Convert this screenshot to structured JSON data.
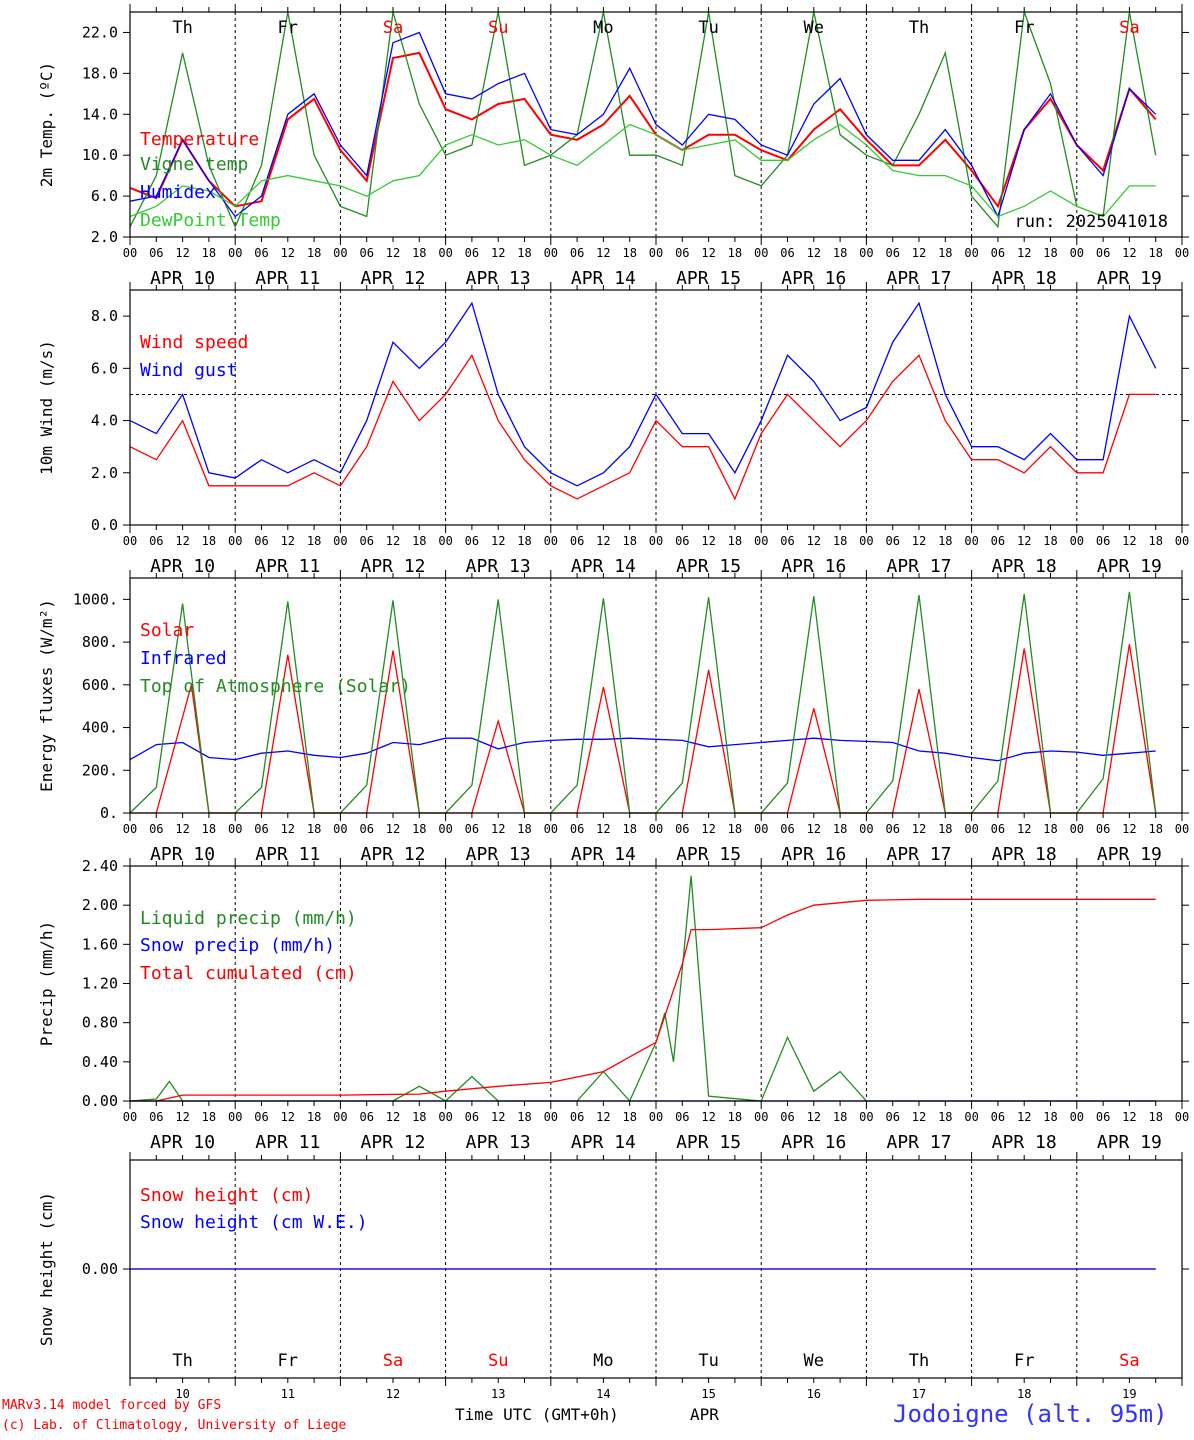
{
  "days": [
    {
      "label": "Th",
      "color": "#000000",
      "date": "APR 10",
      "num": "10"
    },
    {
      "label": "Fr",
      "color": "#000000",
      "date": "APR 11",
      "num": "11"
    },
    {
      "label": "Sa",
      "color": "#ff0000",
      "date": "APR 12",
      "num": "12"
    },
    {
      "label": "Su",
      "color": "#ff0000",
      "date": "APR 13",
      "num": "13"
    },
    {
      "label": "Mo",
      "color": "#000000",
      "date": "APR 14",
      "num": "14"
    },
    {
      "label": "Tu",
      "color": "#000000",
      "date": "APR 15",
      "num": "15"
    },
    {
      "label": "We",
      "color": "#000000",
      "date": "APR 16",
      "num": "16"
    },
    {
      "label": "Th",
      "color": "#000000",
      "date": "APR 17",
      "num": "17"
    },
    {
      "label": "Fr",
      "color": "#000000",
      "date": "APR 18",
      "num": "18"
    },
    {
      "label": "Sa",
      "color": "#ff0000",
      "date": "APR 19",
      "num": "19"
    }
  ],
  "hour_ticks": [
    "00",
    "06",
    "12",
    "18"
  ],
  "footer": {
    "model": "MARv3.14 model forced by GFS",
    "lab": "(c) Lab. of Climatology, University of Liege",
    "xlabel": "Time UTC (GMT+0h)",
    "month": "APR",
    "station": "Jodoigne (alt. 95m)"
  },
  "run_label": "run: 2025041018",
  "chart_data": [
    {
      "type": "line",
      "ylabel": "2m Temp. (ºC)",
      "ylim": [
        2,
        24
      ],
      "yticks": [
        "2.0",
        "6.0",
        "10.0",
        "14.0",
        "18.0",
        "22.0"
      ],
      "x_unit": "hours since APR 10 00 UTC",
      "series": [
        {
          "name": "Temperature",
          "color": "#ff0000",
          "x": [
            0,
            6,
            12,
            18,
            24,
            30,
            36,
            42,
            48,
            54,
            60,
            66,
            72,
            78,
            84,
            90,
            96,
            102,
            108,
            114,
            120,
            126,
            132,
            138,
            144,
            150,
            156,
            162,
            168,
            174,
            180,
            186,
            192,
            198,
            204,
            210,
            216,
            222,
            228,
            234
          ],
          "y": [
            6.8,
            5.8,
            11.5,
            7.5,
            5,
            5.5,
            13.5,
            15.5,
            10.5,
            7.5,
            19.5,
            20,
            14.5,
            13.5,
            15,
            15.5,
            12,
            11.5,
            13,
            15.8,
            12,
            10.5,
            12,
            12,
            10.5,
            9.5,
            12.5,
            14.5,
            11.5,
            9,
            9,
            11.5,
            8.5,
            5,
            12.5,
            15.5,
            11,
            8.5,
            16.5,
            13.5
          ]
        },
        {
          "name": "Vigne temp",
          "color": "#228b22",
          "x": [
            0,
            6,
            12,
            18,
            24,
            30,
            36,
            42,
            48,
            54,
            60,
            66,
            72,
            78,
            84,
            90,
            96,
            102,
            108,
            114,
            120,
            126,
            132,
            138,
            144,
            150,
            156,
            162,
            168,
            174,
            180,
            186,
            192,
            198,
            204,
            210,
            216,
            222,
            228,
            234
          ],
          "y": [
            3,
            8,
            20,
            9,
            3,
            9,
            24,
            10,
            5,
            4,
            24,
            15,
            10,
            11,
            24,
            9,
            10,
            12,
            24,
            10,
            10,
            9,
            24,
            8,
            7,
            10,
            24,
            12,
            10,
            9,
            14,
            20,
            6,
            3,
            24,
            17,
            5,
            4,
            24,
            10
          ]
        },
        {
          "name": "Humidex",
          "color": "#0000ff",
          "x": [
            0,
            6,
            12,
            18,
            24,
            30,
            36,
            42,
            48,
            54,
            60,
            66,
            72,
            78,
            84,
            90,
            96,
            102,
            108,
            114,
            120,
            126,
            132,
            138,
            144,
            150,
            156,
            162,
            168,
            174,
            180,
            186,
            192,
            198,
            204,
            210,
            216,
            222,
            228,
            234
          ],
          "y": [
            5.5,
            6,
            11.5,
            7.5,
            4,
            6,
            14,
            16,
            11,
            8,
            21,
            22,
            16,
            15.5,
            17,
            18,
            12.5,
            12,
            14,
            18.5,
            13,
            11,
            14,
            13.5,
            11,
            10,
            15,
            17.5,
            12,
            9.5,
            9.5,
            12.5,
            9,
            4,
            12.5,
            16,
            11,
            8,
            16.5,
            14
          ]
        },
        {
          "name": "DewPoint Temp",
          "color": "#33cc33",
          "x": [
            0,
            6,
            12,
            18,
            24,
            30,
            36,
            42,
            48,
            54,
            60,
            66,
            72,
            78,
            84,
            90,
            96,
            102,
            108,
            114,
            120,
            126,
            132,
            138,
            144,
            150,
            156,
            162,
            168,
            174,
            180,
            186,
            192,
            198,
            204,
            210,
            216,
            222,
            228,
            234
          ],
          "y": [
            4,
            5,
            7,
            6.5,
            5,
            7.5,
            8,
            7.5,
            7,
            6,
            7.5,
            8,
            11,
            12,
            11,
            11.5,
            10,
            9,
            11,
            13,
            12,
            10.5,
            11,
            11.5,
            9.5,
            9.5,
            11.5,
            13,
            11,
            8.5,
            8,
            8,
            7,
            4,
            5,
            6.5,
            5,
            4,
            7,
            7
          ]
        }
      ]
    },
    {
      "type": "line",
      "ylabel": "10m Wind (m/s)",
      "ylim": [
        0,
        9
      ],
      "yticks": [
        "0.0",
        "2.0",
        "4.0",
        "6.0",
        "8.0"
      ],
      "reference_line": 5,
      "series": [
        {
          "name": "Wind speed",
          "color": "#ff0000",
          "x": [
            0,
            6,
            12,
            18,
            24,
            30,
            36,
            42,
            48,
            54,
            60,
            66,
            72,
            78,
            84,
            90,
            96,
            102,
            108,
            114,
            120,
            126,
            132,
            138,
            144,
            150,
            156,
            162,
            168,
            174,
            180,
            186,
            192,
            198,
            204,
            210,
            216,
            222,
            228,
            234
          ],
          "y": [
            3,
            2.5,
            4,
            1.5,
            1.5,
            1.5,
            1.5,
            2,
            1.5,
            3,
            5.5,
            4,
            5,
            6.5,
            4,
            2.5,
            1.5,
            1,
            1.5,
            2,
            4,
            3,
            3,
            1,
            3.5,
            5,
            4,
            3,
            4,
            5.5,
            6.5,
            4,
            2.5,
            2.5,
            2,
            3,
            2,
            2,
            5,
            5
          ]
        },
        {
          "name": "Wind gust",
          "color": "#0000ff",
          "x": [
            0,
            6,
            12,
            18,
            24,
            30,
            36,
            42,
            48,
            54,
            60,
            66,
            72,
            78,
            84,
            90,
            96,
            102,
            108,
            114,
            120,
            126,
            132,
            138,
            144,
            150,
            156,
            162,
            168,
            174,
            180,
            186,
            192,
            198,
            204,
            210,
            216,
            222,
            228,
            234
          ],
          "y": [
            4,
            3.5,
            5,
            2,
            1.8,
            2.5,
            2,
            2.5,
            2,
            4,
            7,
            6,
            7,
            8.5,
            5,
            3,
            2,
            1.5,
            2,
            3,
            5,
            3.5,
            3.5,
            2,
            4,
            6.5,
            5.5,
            4,
            4.5,
            7,
            8.5,
            5,
            3,
            3,
            2.5,
            3.5,
            2.5,
            2.5,
            8,
            6
          ]
        }
      ]
    },
    {
      "type": "line",
      "ylabel": "Energy fluxes (W/m²)",
      "ylim": [
        0,
        1100
      ],
      "yticks": [
        "0.",
        "200.",
        "400.",
        "600.",
        "800.",
        "1000."
      ],
      "series": [
        {
          "name": "Solar",
          "color": "#ff0000",
          "x": [
            0,
            6,
            12,
            14,
            18,
            24,
            30,
            36,
            42,
            48,
            54,
            60,
            66,
            72,
            78,
            84,
            90,
            96,
            102,
            108,
            114,
            120,
            126,
            132,
            138,
            144,
            150,
            156,
            162,
            168,
            174,
            180,
            186,
            192,
            198,
            204,
            210,
            216,
            222,
            228,
            234
          ],
          "y": [
            0,
            0,
            450,
            600,
            0,
            0,
            0,
            740,
            0,
            0,
            0,
            760,
            0,
            0,
            0,
            430,
            0,
            0,
            0,
            590,
            0,
            0,
            0,
            670,
            0,
            0,
            0,
            490,
            0,
            0,
            0,
            580,
            0,
            0,
            0,
            770,
            0,
            0,
            0,
            790,
            0
          ]
        },
        {
          "name": "Infrared",
          "color": "#0000ff",
          "x": [
            0,
            6,
            12,
            18,
            24,
            30,
            36,
            42,
            48,
            54,
            60,
            66,
            72,
            78,
            84,
            90,
            96,
            102,
            108,
            114,
            120,
            126,
            132,
            138,
            144,
            150,
            156,
            162,
            168,
            174,
            180,
            186,
            192,
            198,
            204,
            210,
            216,
            222,
            228,
            234
          ],
          "y": [
            250,
            320,
            330,
            260,
            250,
            280,
            290,
            270,
            260,
            280,
            330,
            320,
            350,
            350,
            300,
            330,
            340,
            345,
            345,
            350,
            345,
            340,
            310,
            320,
            330,
            340,
            350,
            340,
            335,
            330,
            290,
            280,
            260,
            245,
            280,
            290,
            285,
            270,
            280,
            290
          ]
        },
        {
          "name": "Top of Atmosphere (Solar)",
          "color": "#228b22",
          "x": [
            0,
            6,
            12,
            18,
            24,
            30,
            36,
            42,
            48,
            54,
            60,
            66,
            72,
            78,
            84,
            90,
            96,
            102,
            108,
            114,
            120,
            126,
            132,
            138,
            144,
            150,
            156,
            162,
            168,
            174,
            180,
            186,
            192,
            198,
            204,
            210,
            216,
            222,
            228,
            234
          ],
          "y": [
            0,
            120,
            980,
            0,
            0,
            120,
            990,
            0,
            0,
            130,
            995,
            0,
            0,
            130,
            1000,
            0,
            0,
            130,
            1005,
            0,
            0,
            140,
            1010,
            0,
            0,
            140,
            1015,
            0,
            0,
            150,
            1020,
            0,
            0,
            150,
            1025,
            0,
            0,
            160,
            1035,
            0
          ]
        }
      ]
    },
    {
      "type": "line",
      "ylabel": "Precip (mm/h)",
      "ylim": [
        0,
        2.4
      ],
      "yticks": [
        "0.00",
        "0.40",
        "0.80",
        "1.20",
        "1.60",
        "2.00",
        "2.40"
      ],
      "series": [
        {
          "name": "Liquid precip (mm/h)",
          "color": "#228b22",
          "x": [
            0,
            6,
            9,
            12,
            24,
            36,
            48,
            60,
            66,
            72,
            78,
            84,
            96,
            102,
            108,
            114,
            120,
            122,
            124,
            128,
            132,
            144,
            150,
            156,
            162,
            168,
            180,
            192,
            204,
            216,
            234
          ],
          "y": [
            0,
            0.02,
            0.2,
            0,
            0,
            0,
            0,
            0,
            0.15,
            0,
            0.25,
            0,
            0,
            0,
            0.3,
            0,
            0.6,
            0.9,
            0.4,
            2.3,
            0.05,
            0,
            0.65,
            0.1,
            0.3,
            0,
            0,
            0,
            0,
            0,
            0
          ]
        },
        {
          "name": "Snow precip (mm/h)",
          "color": "#0000ff",
          "x": [
            0,
            234
          ],
          "y": [
            0,
            0
          ]
        },
        {
          "name": "Total cumulated (cm)",
          "color": "#ff0000",
          "x": [
            0,
            6,
            12,
            24,
            48,
            66,
            72,
            84,
            96,
            108,
            114,
            120,
            126,
            128,
            132,
            144,
            150,
            156,
            168,
            180,
            192,
            204,
            216,
            234
          ],
          "y": [
            0,
            0,
            0.06,
            0.06,
            0.06,
            0.07,
            0.1,
            0.15,
            0.19,
            0.3,
            0.45,
            0.6,
            1.4,
            1.75,
            1.75,
            1.77,
            1.9,
            2.0,
            2.05,
            2.06,
            2.06,
            2.06,
            2.06,
            2.06
          ]
        }
      ]
    },
    {
      "type": "line",
      "ylabel": "Snow height (cm)",
      "ylim": [
        -1,
        1
      ],
      "yticks": [
        "0.00"
      ],
      "series": [
        {
          "name": "Snow height (cm)",
          "color": "#ff0000",
          "x": [
            0,
            234
          ],
          "y": [
            0,
            0
          ]
        },
        {
          "name": "Snow height (cm W.E.)",
          "color": "#0000ff",
          "x": [
            0,
            234
          ],
          "y": [
            0,
            0
          ]
        }
      ]
    }
  ]
}
